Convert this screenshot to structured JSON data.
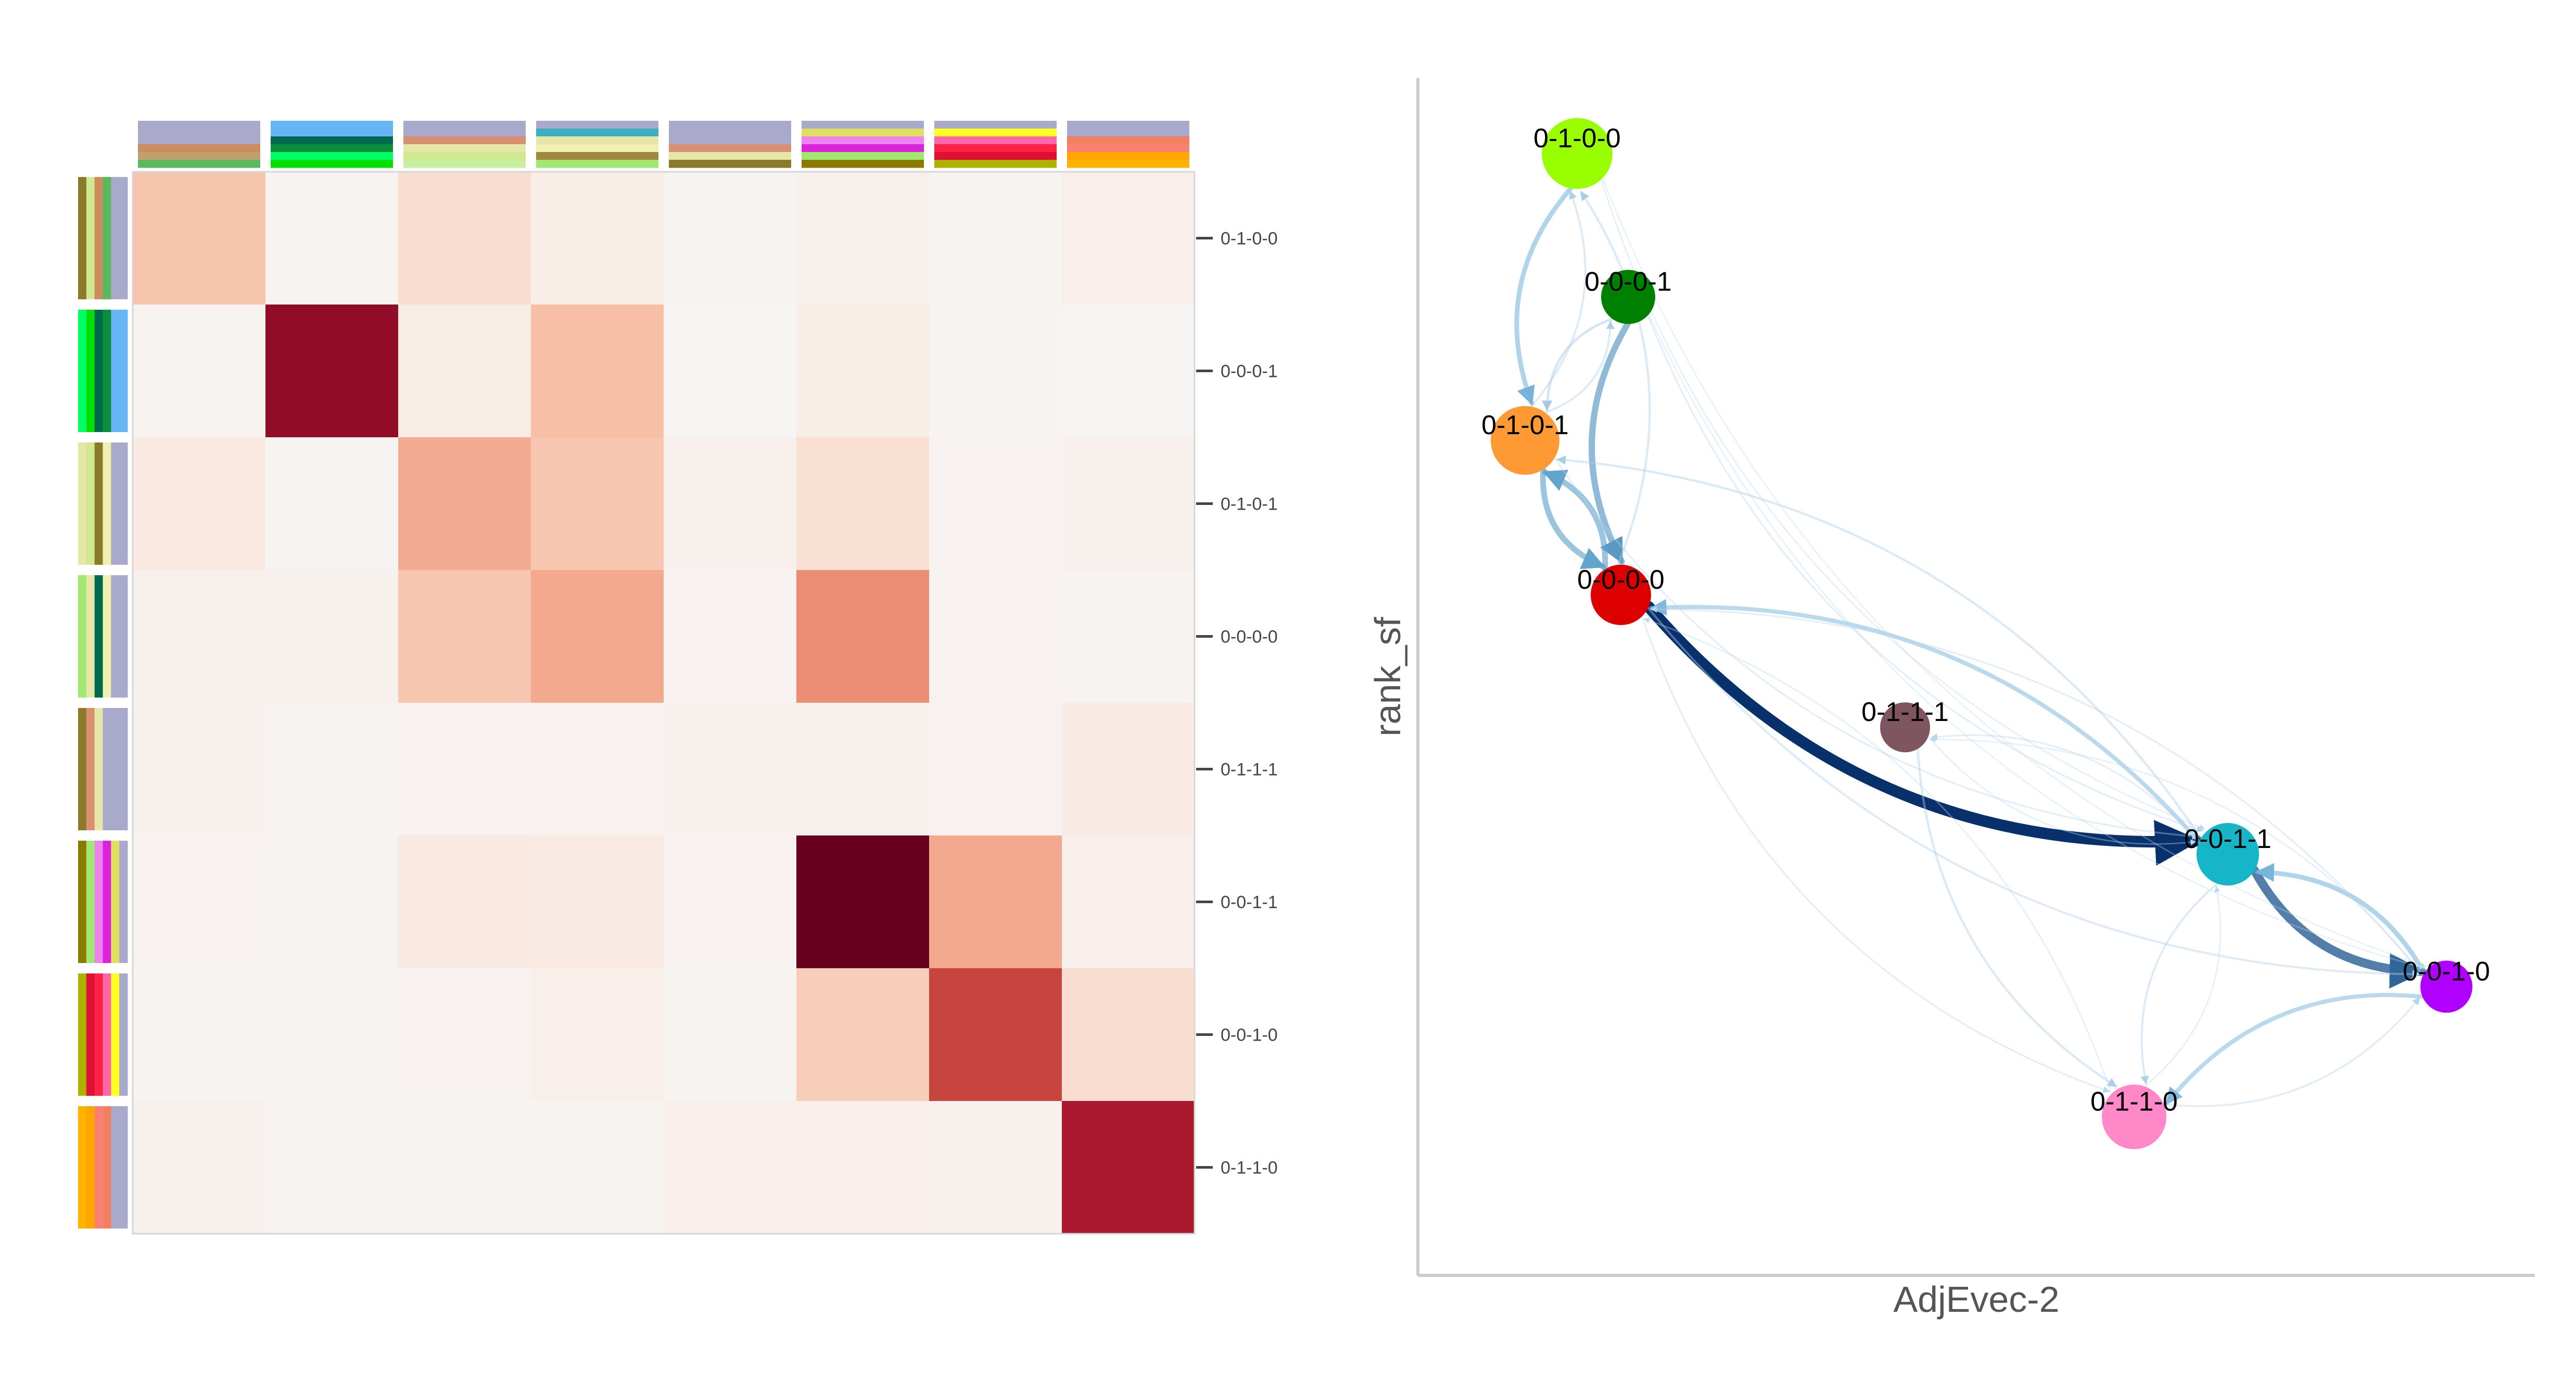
{
  "chart_data": [
    {
      "type": "heatmap",
      "row_labels": [
        "0-1-0-0",
        "0-0-0-1",
        "0-1-0-1",
        "0-0-0-0",
        "0-1-1-1",
        "0-0-1-1",
        "0-0-1-0",
        "0-1-1-0"
      ],
      "values": [
        [
          0.25,
          0.02,
          0.15,
          0.06,
          0.02,
          0.04,
          0.02,
          0.05
        ],
        [
          0.02,
          0.92,
          0.07,
          0.27,
          0.01,
          0.06,
          0.02,
          0.01
        ],
        [
          0.09,
          0.02,
          0.35,
          0.24,
          0.04,
          0.14,
          0.03,
          0.04
        ],
        [
          0.04,
          0.04,
          0.24,
          0.36,
          0.03,
          0.48,
          0.03,
          0.02
        ],
        [
          0.04,
          0.02,
          0.03,
          0.03,
          0.04,
          0.04,
          0.03,
          0.08
        ],
        [
          0.03,
          0.02,
          0.09,
          0.08,
          0.03,
          1.0,
          0.36,
          0.05
        ],
        [
          0.02,
          0.02,
          0.03,
          0.05,
          0.02,
          0.21,
          0.7,
          0.15
        ],
        [
          0.04,
          0.02,
          0.02,
          0.02,
          0.05,
          0.05,
          0.04,
          0.86
        ]
      ],
      "colormap": "RdBu_r (white to dark red)",
      "annotation_bars": {
        "top": [
          [
            "#a9a9cc",
            "#a9a9cc",
            "#a9a9cc",
            "#cd8c5c",
            "#c0a070",
            "#5cb85c"
          ],
          [
            "#66b5f5",
            "#66b5f5",
            "#006a4e",
            "#0a8f3f",
            "#00ff66",
            "#00e000"
          ],
          [
            "#a9a9cc",
            "#a9a9cc",
            "#d89070",
            "#e6e6a8",
            "#d0e890",
            "#c8f0a0"
          ],
          [
            "#a9a9cc",
            "#3cb0c0",
            "#e6e6a8",
            "#f0f0b0",
            "#a08840",
            "#a0e870"
          ],
          [
            "#a9a9cc",
            "#a9a9cc",
            "#a9a9cc",
            "#d89070",
            "#e6e6a8",
            "#8a7a2a"
          ],
          [
            "#a9a9cc",
            "#e0e060",
            "#ee82ee",
            "#dd22dd",
            "#a0e870",
            "#8a7a00"
          ],
          [
            "#a9a9cc",
            "#ffff22",
            "#ff66aa",
            "#ff2244",
            "#dd1133",
            "#b0b000"
          ],
          [
            "#a9a9cc",
            "#a9a9cc",
            "#f08060",
            "#fa8072",
            "#ffa500",
            "#ffb300"
          ]
        ],
        "left": [
          [
            "#8a7a2a",
            "#d0e890",
            "#cd8c5c",
            "#5cb85c",
            "#a9a9cc",
            "#a9a9cc"
          ],
          [
            "#00ff66",
            "#00e000",
            "#006a4e",
            "#0a8f3f",
            "#66b5f5",
            "#66b5f5"
          ],
          [
            "#e6e6a8",
            "#d0e890",
            "#8a7a2a",
            "#f0f0b0",
            "#a9a9cc",
            "#a9a9cc"
          ],
          [
            "#a0e870",
            "#e6e6a8",
            "#006a4e",
            "#f0f0b0",
            "#a9a9cc",
            "#a9a9cc"
          ],
          [
            "#8a7a2a",
            "#d89070",
            "#e6e6a8",
            "#a9a9cc",
            "#a9a9cc",
            "#a9a9cc"
          ],
          [
            "#8a7a00",
            "#a0e870",
            "#ee82ee",
            "#dd22dd",
            "#e0e060",
            "#a9a9cc"
          ],
          [
            "#b0b000",
            "#dd1133",
            "#ff2244",
            "#ff66aa",
            "#ffff22",
            "#a9a9cc"
          ],
          [
            "#ffb300",
            "#ffa500",
            "#fa8072",
            "#f08060",
            "#a9a9cc",
            "#a9a9cc"
          ]
        ]
      }
    },
    {
      "type": "network",
      "xlabel": "AdjEvec-2",
      "ylabel": "rank_sf",
      "nodes": [
        {
          "id": "0-1-0-0",
          "x": 0.115,
          "y": 0.96,
          "color": "#99ff00",
          "size": 1.0
        },
        {
          "id": "0-0-0-1",
          "x": 0.164,
          "y": 0.83,
          "color": "#008000",
          "size": 0.6
        },
        {
          "id": "0-1-0-1",
          "x": 0.065,
          "y": 0.7,
          "color": "#ff9933",
          "size": 0.95
        },
        {
          "id": "0-0-0-0",
          "x": 0.157,
          "y": 0.56,
          "color": "#dd0000",
          "size": 0.75
        },
        {
          "id": "0-1-1-1",
          "x": 0.43,
          "y": 0.44,
          "color": "#7f5560",
          "size": 0.5
        },
        {
          "id": "0-0-1-1",
          "x": 0.74,
          "y": 0.325,
          "color": "#17b5c8",
          "size": 0.8
        },
        {
          "id": "0-0-1-0",
          "x": 0.95,
          "y": 0.205,
          "color": "#b000ff",
          "size": 0.55
        },
        {
          "id": "0-1-1-0",
          "x": 0.65,
          "y": 0.087,
          "color": "#ff88c8",
          "size": 0.85
        }
      ],
      "edges": [
        {
          "source": "0-1-0-0",
          "target": "0-1-0-1",
          "weight": 0.35
        },
        {
          "source": "0-0-0-1",
          "target": "0-0-0-0",
          "weight": 0.5
        },
        {
          "source": "0-1-0-1",
          "target": "0-0-0-0",
          "weight": 0.45
        },
        {
          "source": "0-0-0-0",
          "target": "0-1-0-1",
          "weight": 0.45
        },
        {
          "source": "0-0-0-0",
          "target": "0-0-1-1",
          "weight": 1.0
        },
        {
          "source": "0-0-1-1",
          "target": "0-0-0-0",
          "weight": 0.3
        },
        {
          "source": "0-0-1-1",
          "target": "0-0-1-0",
          "weight": 0.75
        },
        {
          "source": "0-0-1-0",
          "target": "0-0-1-1",
          "weight": 0.35
        },
        {
          "source": "0-0-1-0",
          "target": "0-1-1-0",
          "weight": 0.3
        },
        {
          "source": "0-1-1-0",
          "target": "0-0-1-0",
          "weight": 0.08
        },
        {
          "source": "0-0-0-1",
          "target": "0-1-0-1",
          "weight": 0.15
        },
        {
          "source": "0-1-0-1",
          "target": "0-0-0-1",
          "weight": 0.1
        },
        {
          "source": "0-0-1-1",
          "target": "0-1-0-1",
          "weight": 0.12
        },
        {
          "source": "0-0-0-0",
          "target": "0-1-0-0",
          "weight": 0.12
        },
        {
          "source": "0-1-0-1",
          "target": "0-1-0-0",
          "weight": 0.1
        },
        {
          "source": "0-1-1-1",
          "target": "0-1-1-0",
          "weight": 0.12
        },
        {
          "source": "0-0-1-1",
          "target": "0-1-1-0",
          "weight": 0.1
        },
        {
          "source": "0-0-0-0",
          "target": "0-0-1-0",
          "weight": 0.1
        },
        {
          "source": "0-0-1-1",
          "target": "0-1-1-1",
          "weight": 0.06
        },
        {
          "source": "0-0-0-1",
          "target": "0-0-1-1",
          "weight": 0.06
        },
        {
          "source": "0-1-0-0",
          "target": "0-0-1-1",
          "weight": 0.04
        },
        {
          "source": "0-1-0-1",
          "target": "0-0-1-1",
          "weight": 0.06
        },
        {
          "source": "0-0-1-0",
          "target": "0-0-0-0",
          "weight": 0.06
        },
        {
          "source": "0-0-0-0",
          "target": "0-1-1-0",
          "weight": 0.06
        },
        {
          "source": "0-1-1-1",
          "target": "0-0-1-1",
          "weight": 0.04
        },
        {
          "source": "0-1-1-0",
          "target": "0-0-1-1",
          "weight": 0.04
        },
        {
          "source": "0-1-1-0",
          "target": "0-0-0-0",
          "weight": 0.04
        },
        {
          "source": "0-0-1-0",
          "target": "0-1-1-1",
          "weight": 0.04
        },
        {
          "source": "0-1-0-0",
          "target": "0-0-1-0",
          "weight": 0.03
        },
        {
          "source": "0-0-0-1",
          "target": "0-0-1-0",
          "weight": 0.03
        }
      ]
    }
  ]
}
